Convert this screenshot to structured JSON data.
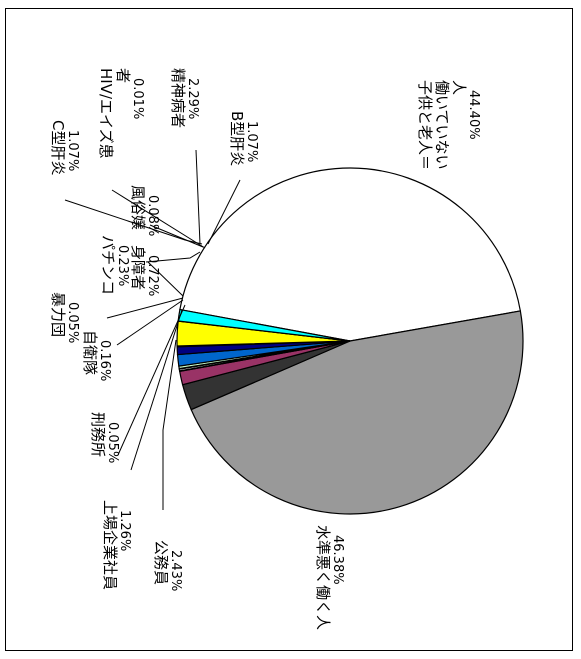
{
  "chart_data": {
    "type": "pie",
    "title": "",
    "slices": [
      {
        "label": "子供と老人＝働いていない人",
        "label_lines": [
          "子供と老人＝",
          "働いていない",
          "人"
        ],
        "pct_text": "44.40%",
        "value": 44.4,
        "color": "#ffffff"
      },
      {
        "label": "水準悪く働く人",
        "label_lines": [
          "水準悪く働く人"
        ],
        "pct_text": "46.38%",
        "value": 46.38,
        "color": "#999999"
      },
      {
        "label": "公務員",
        "label_lines": [
          "公務員"
        ],
        "pct_text": "2.43%",
        "value": 2.43,
        "color": "#333333"
      },
      {
        "label": "上場企業社員",
        "label_lines": [
          "上場企業社員"
        ],
        "pct_text": "1.26%",
        "value": 1.26,
        "color": "#993366"
      },
      {
        "label": "刑務所",
        "label_lines": [
          "刑務所"
        ],
        "pct_text": "0.05%",
        "value": 0.05,
        "color": "#000000"
      },
      {
        "label": "自衛隊",
        "label_lines": [
          "自衛隊"
        ],
        "pct_text": "0.16%",
        "value": 0.16,
        "color": "#ffffff"
      },
      {
        "label": "暴力団",
        "label_lines": [
          "暴力団"
        ],
        "pct_text": "0.05%",
        "value": 0.05,
        "color": "#000000"
      },
      {
        "label": "パチンコ",
        "label_lines": [
          "パチンコ"
        ],
        "pct_text": "0.23%",
        "value": 0.23,
        "color": "#ccffcc"
      },
      {
        "label": "C型肝炎",
        "label_lines": [
          "C型肝炎"
        ],
        "pct_text": "1.07%",
        "value": 1.07,
        "color": "#0066cc"
      },
      {
        "label": "身障者",
        "label_lines": [
          "身障者"
        ],
        "pct_text": "0.72%",
        "value": 0.72,
        "color": "#000080"
      },
      {
        "label": "風俗嬢",
        "label_lines": [
          "風俗嬢"
        ],
        "pct_text": "0.08%",
        "value": 0.08,
        "color": "#ff00ff"
      },
      {
        "label": "精神病者",
        "label_lines": [
          "精神病者"
        ],
        "pct_text": "2.29%",
        "value": 2.29,
        "color": "#ffff00"
      },
      {
        "label": "HIV/エイズ患者",
        "label_lines": [
          "HIV/エイズ患",
          "者"
        ],
        "pct_text": "0.01%",
        "value": 0.01,
        "color": "#800080"
      },
      {
        "label": "B型肝炎",
        "label_lines": [
          "B型肝炎"
        ],
        "pct_text": "1.07%",
        "value": 1.07,
        "color": "#00ffff"
      }
    ]
  }
}
